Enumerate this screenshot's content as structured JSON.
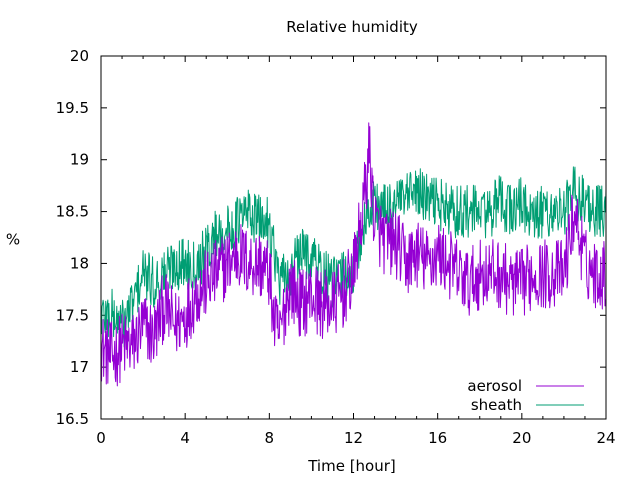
{
  "chart_data": {
    "type": "line",
    "title": "Relative humidity",
    "xlabel": "Time [hour]",
    "ylabel": "%",
    "xlim": [
      0,
      24
    ],
    "ylim": [
      16.5,
      20
    ],
    "xticks": [
      0,
      4,
      8,
      12,
      16,
      20,
      24
    ],
    "yticks": [
      16.5,
      17,
      17.5,
      18,
      18.5,
      19,
      19.5,
      20
    ],
    "xtick_labels": [
      "0",
      "4",
      "8",
      "12",
      "16",
      "20",
      "24"
    ],
    "ytick_labels": [
      "16.5",
      "17",
      "17.5",
      "18",
      "18.5",
      "19",
      "19.5",
      "20"
    ],
    "grid": false,
    "legend_position": "bottom-right",
    "series": [
      {
        "name": "aerosol",
        "color": "#9400d3",
        "x": [
          0,
          0.5,
          1,
          1.5,
          2,
          2.5,
          3,
          3.5,
          4,
          4.5,
          5,
          5.5,
          6,
          6.5,
          7,
          7.5,
          8,
          8.25,
          8.5,
          8.75,
          9,
          9.5,
          10,
          10.5,
          11,
          11.5,
          12,
          12.5,
          12.75,
          13,
          13.5,
          14,
          14.5,
          15,
          15.5,
          16,
          16.5,
          17,
          17.5,
          18,
          18.5,
          19,
          19.5,
          20,
          20.5,
          21,
          21.5,
          22,
          22.5,
          23,
          23.5,
          24
        ],
        "y": [
          17.2,
          17.1,
          17.2,
          17.2,
          17.4,
          17.3,
          17.6,
          17.4,
          17.5,
          17.7,
          17.8,
          17.9,
          18.0,
          18.1,
          18.0,
          18.0,
          17.9,
          17.4,
          17.3,
          17.6,
          17.8,
          17.6,
          17.7,
          17.6,
          17.6,
          17.7,
          17.9,
          18.6,
          19.1,
          18.4,
          18.2,
          18.2,
          18.0,
          18.1,
          18.0,
          18.1,
          18.0,
          17.9,
          17.8,
          17.9,
          17.9,
          17.9,
          17.8,
          17.8,
          17.9,
          17.9,
          17.9,
          17.9,
          18.5,
          18.0,
          17.9,
          17.9
        ]
      },
      {
        "name": "sheath",
        "color": "#009e73",
        "x": [
          0,
          0.5,
          1,
          1.5,
          2,
          2.5,
          3,
          3.5,
          4,
          4.5,
          5,
          5.5,
          6,
          6.5,
          7,
          7.5,
          8,
          8.5,
          9,
          9.5,
          10,
          10.5,
          11,
          11.5,
          12,
          12.5,
          13,
          13.5,
          14,
          14.5,
          15,
          15.5,
          16,
          16.5,
          17,
          17.5,
          18,
          18.5,
          19,
          19.5,
          20,
          20.5,
          21,
          21.5,
          22,
          22.5,
          23,
          23.5,
          24
        ],
        "y": [
          17.5,
          17.5,
          17.4,
          17.6,
          17.9,
          17.8,
          17.9,
          18.0,
          18.0,
          18.0,
          18.1,
          18.3,
          18.3,
          18.4,
          18.5,
          18.4,
          18.4,
          17.8,
          17.9,
          18.1,
          18.1,
          17.9,
          17.8,
          17.9,
          17.9,
          18.4,
          18.6,
          18.5,
          18.6,
          18.6,
          18.7,
          18.6,
          18.6,
          18.5,
          18.5,
          18.5,
          18.5,
          18.5,
          18.6,
          18.5,
          18.6,
          18.4,
          18.5,
          18.5,
          18.5,
          18.7,
          18.6,
          18.5,
          18.5
        ]
      }
    ]
  }
}
